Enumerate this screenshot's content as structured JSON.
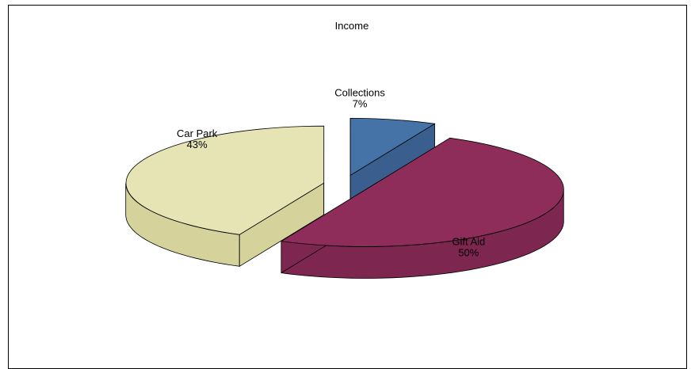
{
  "chart_data": {
    "type": "pie",
    "title": "Income",
    "three_d": true,
    "exploded": true,
    "legend": "none",
    "slices": [
      {
        "label": "Collections",
        "value": 7,
        "percent_label": "7%",
        "color": "#4572a7",
        "side_color": "#3a5f8e"
      },
      {
        "label": "Gift Aid",
        "value": 50,
        "percent_label": "50%",
        "color": "#8e2d5a",
        "side_color": "#7d2650"
      },
      {
        "label": "Car Park",
        "value": 43,
        "percent_label": "43%",
        "color": "#e6e4b4",
        "side_color": "#d5d29c"
      }
    ]
  }
}
